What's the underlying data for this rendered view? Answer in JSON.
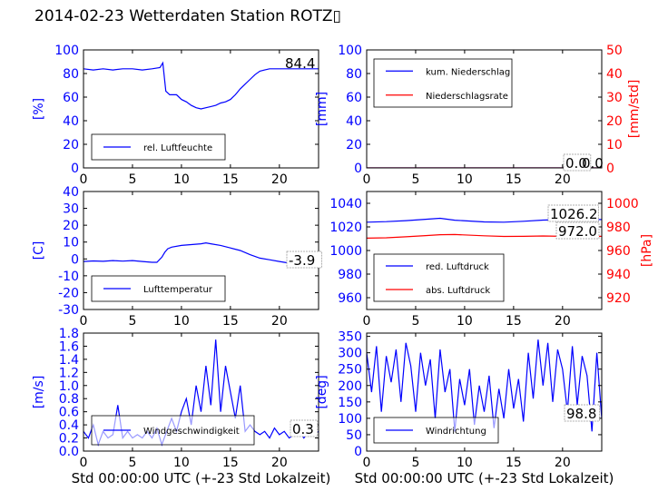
{
  "figure": {
    "title": "2014-02-23 Wetterdaten Station ROTZ▯"
  },
  "chart_data": [
    {
      "id": "humidity",
      "type": "line",
      "xlabel": "",
      "ylabel": "[%]",
      "xlim": [
        0,
        24
      ],
      "ylim": [
        0,
        100
      ],
      "xticks": [
        0,
        5,
        10,
        15,
        20
      ],
      "yticks": [
        0,
        20,
        40,
        60,
        80,
        100
      ],
      "series": [
        {
          "name": "rel. Luftfeuchte",
          "color": "#0000ff",
          "x": [
            0,
            1,
            2,
            3,
            4,
            5,
            6,
            7,
            7.8,
            8.1,
            8.4,
            8.8,
            9.5,
            10,
            10.5,
            11,
            11.5,
            12,
            12.5,
            13,
            13.5,
            14,
            14.5,
            15,
            15.5,
            16,
            16.5,
            17,
            17.5,
            18,
            18.5,
            19,
            20,
            21,
            22,
            23,
            24
          ],
          "y": [
            84,
            83,
            84,
            83,
            84,
            84,
            83,
            84,
            85,
            89,
            65,
            62,
            62,
            58,
            56,
            53,
            51,
            50,
            51,
            52,
            53,
            55,
            56,
            58,
            62,
            67,
            71,
            75,
            79,
            82,
            83,
            84,
            84,
            84,
            84,
            84,
            84
          ]
        }
      ],
      "annotations": [
        "84.4"
      ],
      "legend_position": "lower-left"
    },
    {
      "id": "precip",
      "type": "line",
      "xlabel": "",
      "ylabel": "[mm]",
      "y2label": "[mm/std]",
      "xlim": [
        0,
        24
      ],
      "ylim": [
        0,
        100
      ],
      "y2lim": [
        0,
        50
      ],
      "xticks": [
        0,
        5,
        10,
        15,
        20
      ],
      "yticks": [
        0,
        20,
        40,
        60,
        80,
        100
      ],
      "y2ticks": [
        0,
        10,
        20,
        30,
        40,
        50
      ],
      "series": [
        {
          "name": "kum. Niederschlag",
          "color": "#0000ff",
          "axis": "left",
          "x": [
            0,
            24
          ],
          "y": [
            0,
            0
          ]
        },
        {
          "name": "Niederschlagsrate",
          "color": "#ff0000",
          "axis": "right",
          "x": [
            0,
            24
          ],
          "y": [
            0,
            0
          ]
        }
      ],
      "annotations": [
        "0.0",
        "0.0"
      ],
      "legend_position": "upper-left"
    },
    {
      "id": "temperature",
      "type": "line",
      "xlabel": "",
      "ylabel": "[C]",
      "xlim": [
        0,
        24
      ],
      "ylim": [
        -30,
        40
      ],
      "xticks": [
        0,
        5,
        10,
        15,
        20
      ],
      "yticks": [
        -30,
        -20,
        -10,
        0,
        10,
        20,
        30,
        40
      ],
      "series": [
        {
          "name": "Lufttemperatur",
          "color": "#0000ff",
          "x": [
            0,
            1,
            2,
            3,
            4,
            5,
            6,
            7,
            7.5,
            8,
            8.3,
            8.6,
            9,
            10,
            11,
            12,
            12.5,
            13,
            14,
            15,
            16,
            17,
            18,
            19,
            20,
            21,
            22,
            23,
            24
          ],
          "y": [
            -1.5,
            -1.2,
            -1.4,
            -1.0,
            -1.3,
            -1.0,
            -1.5,
            -2.0,
            -2.0,
            1.0,
            4.0,
            6.0,
            7.0,
            8.0,
            8.5,
            9.0,
            9.5,
            9.0,
            8.0,
            6.5,
            5.0,
            2.5,
            0.5,
            -0.5,
            -1.5,
            -2.5,
            -3.2,
            -3.7,
            -3.9
          ]
        }
      ],
      "annotations": [
        "-3.9"
      ],
      "legend_position": "lower-left"
    },
    {
      "id": "pressure",
      "type": "line",
      "xlabel": "",
      "ylabel": "",
      "y2label": "[hPa]",
      "xlim": [
        0,
        24
      ],
      "ylim": [
        950,
        1050
      ],
      "y2lim": [
        910,
        1010
      ],
      "xticks": [
        0,
        5,
        10,
        15,
        20
      ],
      "yticks": [
        960,
        980,
        1000,
        1020,
        1040
      ],
      "y2ticks": [
        920,
        940,
        960,
        980,
        1000
      ],
      "series": [
        {
          "name": "red. Luftdruck",
          "color": "#0000ff",
          "axis": "left",
          "x": [
            0,
            2,
            4,
            6,
            7.5,
            9,
            12,
            14,
            16,
            18,
            20,
            22,
            24
          ],
          "y": [
            1024,
            1024.5,
            1025.3,
            1026.5,
            1027.3,
            1025.7,
            1024.2,
            1024.0,
            1024.8,
            1025.8,
            1026.2,
            1026.2,
            1026.2
          ]
        },
        {
          "name": "abs. Luftdruck",
          "color": "#ff0000",
          "axis": "right",
          "x": [
            0,
            2,
            4,
            6,
            7.5,
            9,
            12,
            14,
            16,
            18,
            20,
            22,
            24
          ],
          "y": [
            970.5,
            970.8,
            971.6,
            972.6,
            973.4,
            973.5,
            972.5,
            971.9,
            972.0,
            972.3,
            972.0,
            972.0,
            972.0
          ]
        }
      ],
      "annotations": [
        "1026.2",
        "972.0"
      ],
      "legend_position": "lower-left"
    },
    {
      "id": "windspeed",
      "type": "line",
      "xlabel": "Std 00:00:00 UTC (+-23 Std Lokalzeit)",
      "ylabel": "[m/s]",
      "xlim": [
        0,
        24
      ],
      "ylim": [
        0,
        1.8
      ],
      "xticks": [
        0,
        5,
        10,
        15,
        20
      ],
      "yticks": [
        0.0,
        0.2,
        0.4,
        0.6,
        0.8,
        1.0,
        1.2,
        1.4,
        1.6,
        1.8
      ],
      "series": [
        {
          "name": "Windgeschwindigkeit",
          "color": "#0000ff",
          "x": [
            0,
            0.5,
            1,
            1.5,
            2,
            2.5,
            3,
            3.5,
            4,
            4.5,
            5,
            5.5,
            6,
            6.5,
            7,
            7.5,
            8,
            8.5,
            9,
            9.5,
            10,
            10.5,
            11,
            11.5,
            12,
            12.5,
            13,
            13.5,
            14,
            14.5,
            15,
            15.5,
            16,
            16.5,
            17,
            17.5,
            18,
            18.5,
            19,
            19.5,
            20,
            20.5,
            21,
            21.5,
            22,
            22.5,
            23,
            23.5,
            24
          ],
          "y": [
            0.3,
            0.2,
            0.4,
            0.1,
            0.3,
            0.2,
            0.25,
            0.7,
            0.2,
            0.3,
            0.2,
            0.25,
            0.2,
            0.3,
            0.2,
            0.35,
            0.1,
            0.3,
            0.5,
            0.3,
            0.6,
            0.8,
            0.4,
            1.0,
            0.6,
            1.3,
            0.7,
            1.7,
            0.6,
            1.3,
            0.9,
            0.5,
            1.0,
            0.3,
            0.4,
            0.3,
            0.25,
            0.3,
            0.2,
            0.35,
            0.25,
            0.3,
            0.2,
            0.25,
            0.3,
            0.2,
            0.3,
            0.25,
            0.3
          ]
        }
      ],
      "annotations": [
        "0.3"
      ],
      "legend_position": "lower-left"
    },
    {
      "id": "winddir",
      "type": "line",
      "xlabel": "Std 00:00:00 UTC (+-23 Std Lokalzeit)",
      "ylabel": "[deg]",
      "xlim": [
        0,
        24
      ],
      "ylim": [
        0,
        360
      ],
      "xticks": [
        0,
        5,
        10,
        15,
        20
      ],
      "yticks": [
        0,
        50,
        100,
        150,
        200,
        250,
        300,
        350
      ],
      "series": [
        {
          "name": "Windrichtung",
          "color": "#0000ff",
          "x": [
            0,
            0.5,
            1,
            1.5,
            2,
            2.5,
            3,
            3.5,
            4,
            4.5,
            5,
            5.5,
            6,
            6.5,
            7,
            7.5,
            8,
            8.5,
            9,
            9.5,
            10,
            10.5,
            11,
            11.5,
            12,
            12.5,
            13,
            13.5,
            14,
            14.5,
            15,
            15.5,
            16,
            16.5,
            17,
            17.5,
            18,
            18.5,
            19,
            19.5,
            20,
            20.5,
            21,
            21.5,
            22,
            22.5,
            23,
            23.5,
            24
          ],
          "y": [
            300,
            180,
            320,
            120,
            290,
            210,
            310,
            150,
            330,
            260,
            120,
            300,
            200,
            280,
            100,
            310,
            180,
            250,
            60,
            220,
            140,
            250,
            80,
            200,
            120,
            230,
            70,
            190,
            100,
            250,
            130,
            220,
            90,
            300,
            160,
            340,
            200,
            330,
            150,
            310,
            250,
            120,
            320,
            140,
            290,
            230,
            60,
            300,
            99
          ]
        }
      ],
      "annotations": [
        "98.8"
      ],
      "legend_position": "lower-left"
    }
  ]
}
